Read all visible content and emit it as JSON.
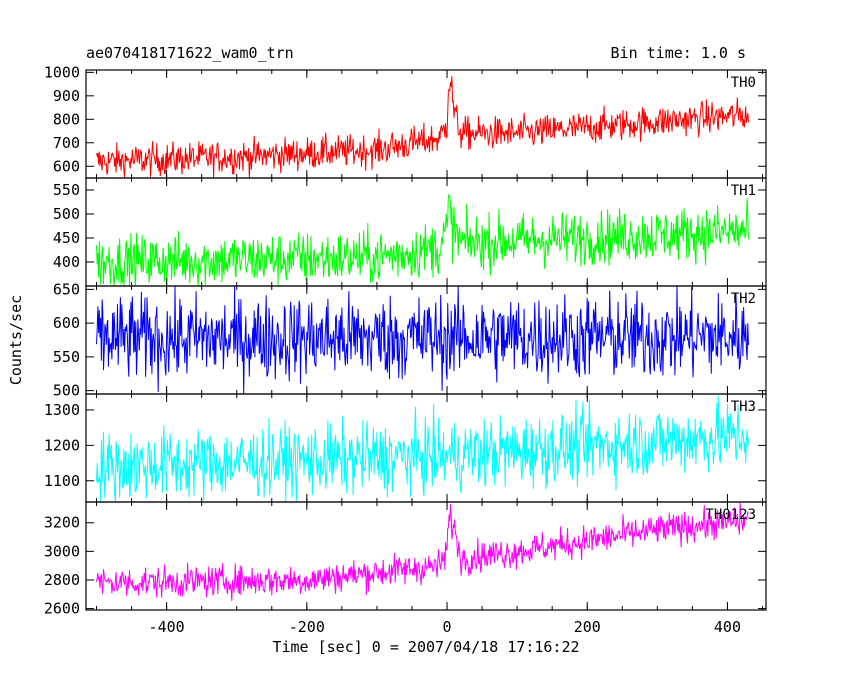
{
  "header": {
    "object": "ae070418171622_wam0_trn",
    "bin_time": "Bin time: 1.0 s"
  },
  "chart_data": {
    "type": "line",
    "xlabel": "Time [sec] 0 = 2007/04/18 17:16:22",
    "ylabel": "Counts/sec",
    "xlim": [
      -515,
      455
    ],
    "xticks": [
      -400,
      -200,
      0,
      200,
      400
    ],
    "x_data_range": [
      -500,
      430
    ],
    "panels": [
      {
        "name": "TH0",
        "color": "#ff0000",
        "ylim": [
          550,
          1010
        ],
        "yticks": [
          600,
          700,
          800,
          900,
          1000
        ],
        "trend": [
          [
            -500,
            620
          ],
          [
            -300,
            640
          ],
          [
            -100,
            670
          ],
          [
            -10,
            720
          ],
          [
            0,
            780
          ],
          [
            2,
            950
          ],
          [
            6,
            960
          ],
          [
            10,
            830
          ],
          [
            20,
            740
          ],
          [
            100,
            740
          ],
          [
            300,
            790
          ],
          [
            430,
            820
          ]
        ],
        "noise": 35
      },
      {
        "name": "TH1",
        "color": "#00ff00",
        "ylim": [
          350,
          575
        ],
        "yticks": [
          400,
          450,
          500,
          550
        ],
        "trend": [
          [
            -500,
            400
          ],
          [
            -100,
            410
          ],
          [
            -10,
            430
          ],
          [
            0,
            470
          ],
          [
            3,
            520
          ],
          [
            8,
            470
          ],
          [
            20,
            440
          ],
          [
            430,
            465
          ]
        ],
        "noise": 28
      },
      {
        "name": "TH2",
        "color": "#0000ff",
        "ylim": [
          495,
          655
        ],
        "yticks": [
          500,
          550,
          600,
          650
        ],
        "trend": [
          [
            -500,
            577
          ],
          [
            430,
            580
          ]
        ],
        "noise": 32
      },
      {
        "name": "TH3",
        "color": "#00ffff",
        "ylim": [
          1040,
          1345
        ],
        "yticks": [
          1100,
          1200,
          1300
        ],
        "trend": [
          [
            -500,
            1140
          ],
          [
            0,
            1170
          ],
          [
            430,
            1230
          ]
        ],
        "noise": 50
      },
      {
        "name": "TH0123",
        "color": "#ff00ff",
        "ylim": [
          2590,
          3345
        ],
        "yticks": [
          2600,
          2800,
          3000,
          3200
        ],
        "trend": [
          [
            -500,
            2780
          ],
          [
            -200,
            2800
          ],
          [
            -10,
            2900
          ],
          [
            0,
            3000
          ],
          [
            3,
            3250
          ],
          [
            8,
            3200
          ],
          [
            20,
            2950
          ],
          [
            100,
            3000
          ],
          [
            300,
            3150
          ],
          [
            430,
            3220
          ]
        ],
        "noise": 55
      }
    ]
  }
}
